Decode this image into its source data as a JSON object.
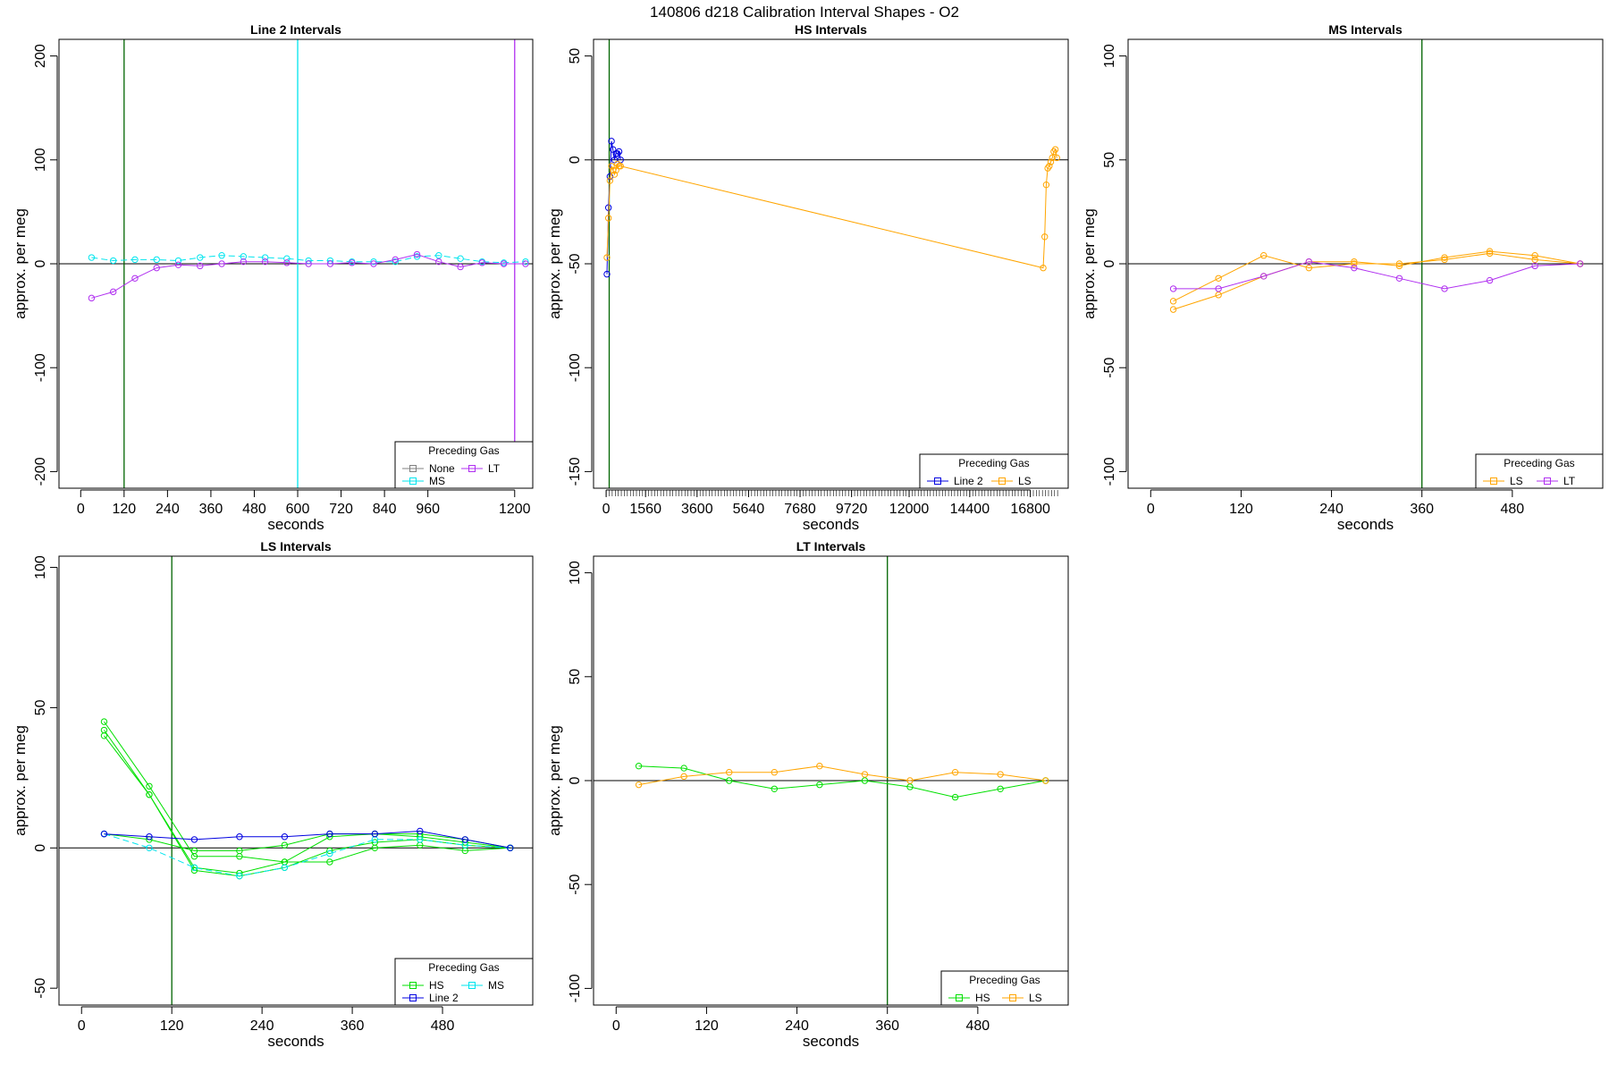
{
  "figure_title": "140806   d218   Calibration Interval Shapes - O2",
  "colors": {
    "None": "#808080",
    "MS": "#00e5ee",
    "LT": "#b030f0",
    "Line 2": "#0000e0",
    "LS": "#ffa500",
    "HS": "#00e000",
    "zero_line": "#000000",
    "vline_green": "#006400"
  },
  "chart_data": [
    {
      "type": "line",
      "title": "Line 2 Intervals",
      "xlabel": "seconds",
      "ylabel": "approx. per meg",
      "xlim": [
        -60,
        1250
      ],
      "ylim": [
        -216,
        216
      ],
      "xticks": [
        0,
        120,
        240,
        360,
        480,
        600,
        720,
        840,
        960,
        1200
      ],
      "yticks": [
        -200,
        -100,
        0,
        100,
        200
      ],
      "vlines": [
        {
          "x": 120,
          "color": "vline_green"
        },
        {
          "x": 600,
          "color": "MS"
        },
        {
          "x": 1200,
          "color": "LT"
        }
      ],
      "legend": {
        "title": "Preceding Gas",
        "position": "bottom-right",
        "cols": 2,
        "entries": [
          "None",
          "LT",
          "MS"
        ]
      },
      "series": [
        {
          "name": "MS",
          "dashed": true,
          "x": [
            30,
            90,
            150,
            210,
            270,
            330,
            390,
            450,
            510,
            570,
            630,
            690,
            750,
            810,
            870,
            930,
            990,
            1050,
            1110,
            1170,
            1230
          ],
          "y": [
            6,
            3,
            4,
            4,
            3,
            6,
            8,
            7,
            6,
            5,
            3,
            3,
            2,
            2,
            2,
            7,
            8,
            5,
            2,
            1,
            2
          ]
        },
        {
          "name": "LT",
          "dashed": false,
          "x": [
            30,
            90,
            150,
            210,
            270,
            330,
            390,
            450,
            510,
            570,
            630,
            690,
            750,
            810,
            870,
            930,
            990,
            1050,
            1110,
            1170,
            1230
          ],
          "y": [
            -33,
            -27,
            -14,
            -4,
            -1,
            -2,
            0,
            2,
            2,
            1,
            0,
            0,
            1,
            0,
            4,
            9,
            2,
            -3,
            1,
            0,
            0
          ]
        }
      ]
    },
    {
      "type": "line",
      "title": "HS Intervals",
      "xlabel": "seconds",
      "ylabel": "approx. per meg",
      "xlim": [
        -500,
        18300
      ],
      "ylim": [
        -158,
        58
      ],
      "xticks": [
        0,
        1560,
        3600,
        5640,
        7680,
        9720,
        12000,
        14400,
        16800
      ],
      "minor_ticks_every": 120,
      "yticks": [
        -150,
        -100,
        -50,
        0,
        50
      ],
      "vlines": [
        {
          "x": 120,
          "color": "vline_green"
        }
      ],
      "legend": {
        "title": "Preceding Gas",
        "position": "bottom-right",
        "cols": 2,
        "entries": [
          "Line 2",
          "LS"
        ]
      },
      "series": [
        {
          "name": "Line 2",
          "dashed": false,
          "x": [
            30,
            90,
            150,
            210,
            270,
            330,
            390,
            450,
            510,
            570
          ],
          "y": [
            -55,
            -23,
            -8,
            9,
            5,
            0,
            3,
            3,
            4,
            0
          ]
        },
        {
          "name": "LS",
          "dashed": false,
          "x": [
            30,
            90,
            150,
            210,
            270,
            330,
            390,
            450,
            510,
            570,
            17310,
            17370,
            17430,
            17490,
            17550,
            17610,
            17670,
            17730,
            17790,
            17850
          ],
          "y": [
            -47,
            -28,
            -10,
            -3,
            -5,
            -7,
            -5,
            -2,
            -3,
            -3,
            -52,
            -37,
            -12,
            -4,
            -3,
            -1,
            1,
            4,
            5,
            1
          ]
        }
      ]
    },
    {
      "type": "line",
      "title": "MS Intervals",
      "xlabel": "seconds",
      "ylabel": "approx. per meg",
      "xlim": [
        -30,
        600
      ],
      "ylim": [
        -108,
        108
      ],
      "xticks": [
        0,
        120,
        240,
        360,
        480
      ],
      "yticks": [
        -100,
        -50,
        0,
        50,
        100
      ],
      "vlines": [
        {
          "x": 360,
          "color": "vline_green"
        }
      ],
      "legend": {
        "title": "Preceding Gas",
        "position": "bottom-right",
        "cols": 2,
        "entries": [
          "LS",
          "LT"
        ]
      },
      "series": [
        {
          "name": "LS",
          "dashed": false,
          "x": [
            30,
            90,
            150,
            210,
            270,
            330,
            390,
            450,
            510,
            570
          ],
          "y": [
            -22,
            -15,
            -6,
            1,
            1,
            -1,
            3,
            6,
            4,
            0
          ]
        },
        {
          "name": "LS",
          "dashed": false,
          "x": [
            30,
            90,
            150,
            210,
            270,
            330,
            390,
            450,
            510,
            570
          ],
          "y": [
            -18,
            -7,
            4,
            -2,
            0,
            0,
            2,
            5,
            2,
            0
          ]
        },
        {
          "name": "LT",
          "dashed": false,
          "x": [
            30,
            90,
            150,
            210,
            270,
            330,
            390,
            450,
            510,
            570
          ],
          "y": [
            -12,
            -12,
            -6,
            1,
            -2,
            -7,
            -12,
            -8,
            -1,
            0
          ]
        }
      ]
    },
    {
      "type": "line",
      "title": "LS Intervals",
      "xlabel": "seconds",
      "ylabel": "approx. per meg",
      "xlim": [
        -30,
        600
      ],
      "ylim": [
        -56,
        104
      ],
      "xticks": [
        0,
        120,
        240,
        360,
        480
      ],
      "yticks": [
        -50,
        0,
        50,
        100
      ],
      "vlines": [
        {
          "x": 120,
          "color": "vline_green"
        }
      ],
      "legend": {
        "title": "Preceding Gas",
        "position": "bottom-right",
        "cols": 2,
        "entries": [
          "HS",
          "MS",
          "Line 2"
        ]
      },
      "series": [
        {
          "name": "HS",
          "dashed": false,
          "x": [
            30,
            90,
            150,
            210,
            270,
            330,
            390,
            450,
            510,
            570
          ],
          "y": [
            45,
            22,
            -3,
            -3,
            -5,
            -5,
            0,
            1,
            -1,
            0
          ]
        },
        {
          "name": "HS",
          "dashed": false,
          "x": [
            30,
            90,
            150,
            210,
            270,
            330,
            390,
            450,
            510,
            570
          ],
          "y": [
            42,
            19,
            -7,
            -9,
            -5,
            4,
            5,
            5,
            3,
            0
          ]
        },
        {
          "name": "HS",
          "dashed": false,
          "x": [
            30,
            90,
            150,
            210,
            270,
            330,
            390,
            450,
            510,
            570
          ],
          "y": [
            40,
            19,
            -8,
            -10,
            -7,
            -1,
            2,
            3,
            1,
            0
          ]
        },
        {
          "name": "HS",
          "dashed": false,
          "x": [
            30,
            90,
            150,
            210,
            270,
            330,
            390,
            450,
            510,
            570
          ],
          "y": [
            5,
            3,
            -1,
            -1,
            1,
            5,
            5,
            4,
            2,
            0
          ]
        },
        {
          "name": "MS",
          "dashed": true,
          "x": [
            30,
            90,
            150,
            210,
            270,
            330,
            390,
            450,
            510,
            570
          ],
          "y": [
            5,
            0,
            -7,
            -10,
            -7,
            -2,
            3,
            3,
            1,
            0
          ]
        },
        {
          "name": "Line 2",
          "dashed": false,
          "x": [
            30,
            90,
            150,
            210,
            270,
            330,
            390,
            450,
            510,
            570
          ],
          "y": [
            5,
            4,
            3,
            4,
            4,
            5,
            5,
            6,
            3,
            0
          ]
        }
      ]
    },
    {
      "type": "line",
      "title": "LT Intervals",
      "xlabel": "seconds",
      "ylabel": "approx. per meg",
      "xlim": [
        -30,
        600
      ],
      "ylim": [
        -108,
        108
      ],
      "xticks": [
        0,
        120,
        240,
        360,
        480
      ],
      "yticks": [
        -100,
        -50,
        0,
        50,
        100
      ],
      "vlines": [
        {
          "x": 360,
          "color": "vline_green"
        }
      ],
      "legend": {
        "title": "Preceding Gas",
        "position": "bottom-right",
        "cols": 2,
        "entries": [
          "HS",
          "LS"
        ]
      },
      "series": [
        {
          "name": "HS",
          "dashed": false,
          "x": [
            30,
            90,
            150,
            210,
            270,
            330,
            390,
            450,
            510,
            570
          ],
          "y": [
            7,
            6,
            0,
            -4,
            -2,
            0,
            -3,
            -8,
            -4,
            0
          ]
        },
        {
          "name": "LS",
          "dashed": false,
          "x": [
            30,
            90,
            150,
            210,
            270,
            330,
            390,
            450,
            510,
            570
          ],
          "y": [
            -2,
            2,
            4,
            4,
            7,
            3,
            0,
            4,
            3,
            0
          ]
        }
      ]
    }
  ]
}
